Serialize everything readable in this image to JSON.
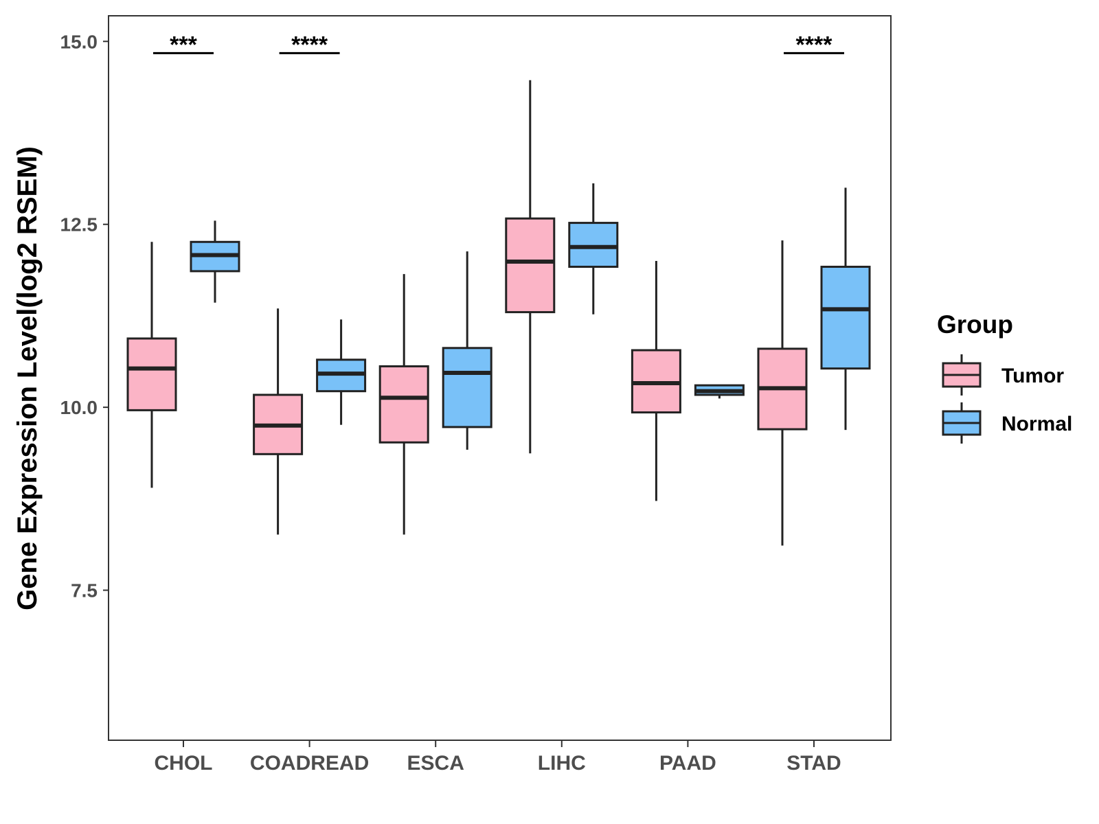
{
  "chart_data": {
    "type": "boxplot",
    "title": "",
    "xlabel": "",
    "ylabel": "Gene Expression Level(log2 RSEM)",
    "ylim": [
      5.45,
      15.35
    ],
    "yticks": [
      7.5,
      10.0,
      12.5,
      15.0
    ],
    "ytick_labels": [
      "7.5",
      "10.0",
      "12.5",
      "15.0"
    ],
    "categories": [
      "CHOL",
      "COADREAD",
      "ESCA",
      "LIHC",
      "PAAD",
      "STAD"
    ],
    "grid": false,
    "legend": {
      "title": "Group",
      "position": "right",
      "entries": [
        {
          "label": "Tumor",
          "color": "#FBB4C6"
        },
        {
          "label": "Normal",
          "color": "#79C1F8"
        }
      ]
    },
    "series": [
      {
        "name": "Tumor",
        "color": "#FBB4C6",
        "boxes": [
          {
            "category": "CHOL",
            "whisker_low": 8.9,
            "q1": 9.96,
            "median": 10.53,
            "q3": 10.94,
            "whisker_high": 12.26
          },
          {
            "category": "COADREAD",
            "whisker_low": 8.26,
            "q1": 9.36,
            "median": 9.75,
            "q3": 10.17,
            "whisker_high": 11.35
          },
          {
            "category": "ESCA",
            "whisker_low": 8.26,
            "q1": 9.52,
            "median": 10.13,
            "q3": 10.56,
            "whisker_high": 11.82
          },
          {
            "category": "LIHC",
            "whisker_low": 9.37,
            "q1": 11.3,
            "median": 11.99,
            "q3": 12.58,
            "whisker_high": 14.47
          },
          {
            "category": "PAAD",
            "whisker_low": 8.72,
            "q1": 9.93,
            "median": 10.33,
            "q3": 10.78,
            "whisker_high": 12.0
          },
          {
            "category": "STAD",
            "whisker_low": 8.11,
            "q1": 9.7,
            "median": 10.26,
            "q3": 10.8,
            "whisker_high": 12.28
          }
        ]
      },
      {
        "name": "Normal",
        "color": "#79C1F8",
        "boxes": [
          {
            "category": "CHOL",
            "whisker_low": 11.43,
            "q1": 11.86,
            "median": 12.08,
            "q3": 12.26,
            "whisker_high": 12.55
          },
          {
            "category": "COADREAD",
            "whisker_low": 9.76,
            "q1": 10.22,
            "median": 10.46,
            "q3": 10.65,
            "whisker_high": 11.2
          },
          {
            "category": "ESCA",
            "whisker_low": 9.42,
            "q1": 9.73,
            "median": 10.47,
            "q3": 10.81,
            "whisker_high": 12.13
          },
          {
            "category": "LIHC",
            "whisker_low": 11.27,
            "q1": 11.92,
            "median": 12.19,
            "q3": 12.52,
            "whisker_high": 13.06
          },
          {
            "category": "PAAD",
            "whisker_low": 10.12,
            "q1": 10.17,
            "median": 10.22,
            "q3": 10.3,
            "whisker_high": 10.3
          },
          {
            "category": "STAD",
            "whisker_low": 9.69,
            "q1": 10.53,
            "median": 11.34,
            "q3": 11.92,
            "whisker_high": 13.0
          }
        ]
      }
    ],
    "annotations": [
      {
        "category": "CHOL",
        "text": "***",
        "y": 14.84
      },
      {
        "category": "COADREAD",
        "text": "****",
        "y": 14.84
      },
      {
        "category": "STAD",
        "text": "****",
        "y": 14.84
      }
    ]
  }
}
